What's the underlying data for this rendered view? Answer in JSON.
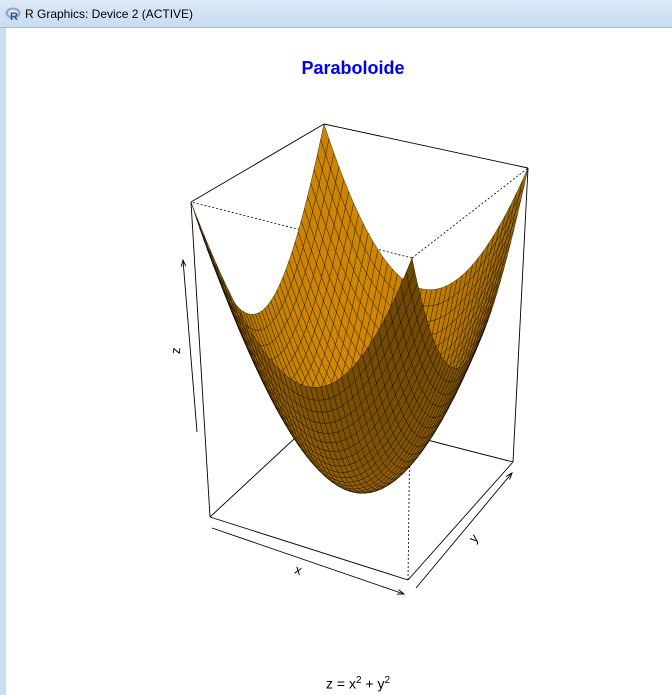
{
  "window": {
    "title": "R Graphics: Device 2 (ACTIVE)",
    "app_icon": "r-logo-icon"
  },
  "chart_data": {
    "type": "surface3d",
    "title": "Paraboloide",
    "xlabel": "x",
    "ylabel": "y",
    "zlabel": "z",
    "surface_color": "#ffa500",
    "title_color": "#0000ee",
    "formula": {
      "lhs": "z",
      "eq": "=",
      "term1": "x",
      "exp1": "2",
      "plus": "+",
      "term2": "y",
      "exp2": "2"
    }
  }
}
